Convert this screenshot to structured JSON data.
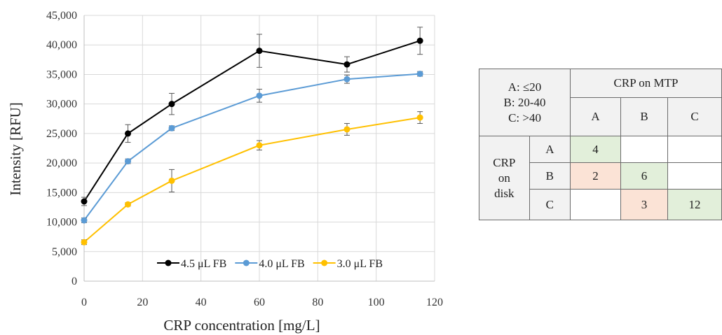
{
  "chart_data": {
    "type": "line",
    "xlabel": "CRP concentration [mg/L]",
    "ylabel": "Intensity [RFU]",
    "xlim": [
      0,
      120
    ],
    "ylim": [
      0,
      45000
    ],
    "xticks": [
      "0",
      "20",
      "40",
      "60",
      "80",
      "100",
      "120"
    ],
    "yticks": [
      "0",
      "5,000",
      "10,000",
      "15,000",
      "20,000",
      "25,000",
      "30,000",
      "35,000",
      "40,000",
      "45,000"
    ],
    "grid": true,
    "legend_position": "bottom-right",
    "x": [
      0,
      15,
      30,
      60,
      90,
      115
    ],
    "series": [
      {
        "name": "4.5 μL FB",
        "color": "#000000",
        "values": [
          13500,
          25000,
          30000,
          39000,
          36700,
          40700
        ],
        "errors": [
          700,
          1500,
          1800,
          2800,
          1300,
          2300
        ]
      },
      {
        "name": "4.0 μL FB",
        "color": "#5b9bd5",
        "values": [
          10300,
          20300,
          25900,
          31400,
          34200,
          35100
        ],
        "errors": [
          400,
          400,
          400,
          1100,
          700,
          400
        ]
      },
      {
        "name": "3.0 μL FB",
        "color": "#ffc000",
        "values": [
          6600,
          13000,
          17000,
          23000,
          25700,
          27700
        ],
        "errors": [
          400,
          300,
          1900,
          800,
          1000,
          1000
        ]
      }
    ]
  },
  "table": {
    "legend_lines": [
      "A: ≤20",
      "B: 20-40",
      "C: >40"
    ],
    "col_header": "CRP on MTP",
    "row_header_lines": [
      "CRP",
      "on",
      "disk"
    ],
    "col_labels": [
      "A",
      "B",
      "C"
    ],
    "row_labels": [
      "A",
      "B",
      "C"
    ],
    "cells": [
      [
        "4",
        "",
        ""
      ],
      [
        "2",
        "6",
        ""
      ],
      [
        "",
        "3",
        "12"
      ]
    ],
    "cell_colors": [
      [
        "#e2efda",
        "#ffffff",
        "#ffffff"
      ],
      [
        "#fbe3d6",
        "#e2efda",
        "#ffffff"
      ],
      [
        "#ffffff",
        "#fbe3d6",
        "#e2efda"
      ]
    ]
  }
}
